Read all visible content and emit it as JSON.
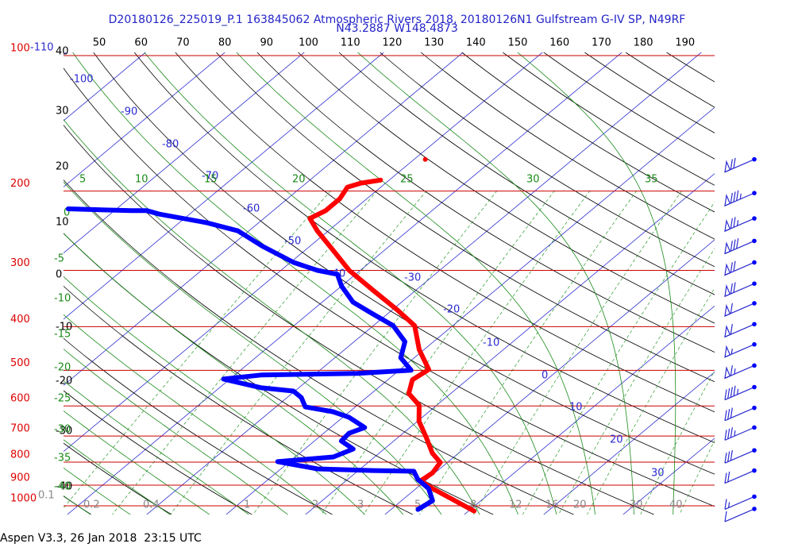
{
  "chart_data": {
    "type": "skewt",
    "title": [
      "D20180126_225019_P.1 163845062 Atmospheric Rivers 2018, 20180126N1 Gulfstream G-IV SP, N49RF",
      "N43.2887 W148.4873"
    ],
    "footer": "Aspen V3.3, 26 Jan 2018  23:15 UTC",
    "ylim": [
      100,
      1000
    ],
    "yticks": [
      100,
      200,
      300,
      400,
      500,
      600,
      700,
      800,
      900,
      1000
    ],
    "top_ticks": [
      50,
      60,
      70,
      80,
      90,
      100,
      110,
      120,
      130,
      140,
      150,
      160,
      170,
      180,
      190
    ],
    "left_labels": [
      40,
      30,
      20,
      10,
      0,
      -10,
      -20,
      -30,
      -40
    ],
    "isotherm_labels": [
      -110,
      -100,
      -90,
      -80,
      -70,
      -60,
      -50,
      -40,
      -30,
      -20,
      -10,
      0,
      10,
      20,
      30
    ],
    "theta_labels": [
      5,
      10,
      15,
      20,
      25,
      30,
      35
    ],
    "green_left_labels": [
      0,
      -5,
      -10,
      -15,
      -20,
      -25,
      -30,
      -35,
      -40
    ],
    "mixing_ratio_labels": [
      0.1,
      0.2,
      0.4,
      1,
      2,
      3,
      5,
      8,
      12,
      16,
      20,
      30,
      40
    ],
    "series": [
      {
        "color": "#ff0000",
        "pressure": [
          1027,
          966,
          916,
          880,
          845,
          801,
          764,
          704,
          649,
          598,
          563,
          525,
          498,
          450,
          398,
          367,
          332,
          300,
          271,
          245,
          230,
          221,
          208,
          196,
          192,
          189,
          null,
          170
        ],
        "values": [
          10.7,
          6.1,
          2.1,
          -0.6,
          -0.3,
          -0.9,
          -3.3,
          -6.5,
          -9.8,
          -12.2,
          -15.3,
          -16.9,
          -16.4,
          -20.6,
          -24.8,
          -29.4,
          -35.4,
          -41.4,
          -46.4,
          -51.4,
          -54.2,
          -53.4,
          -53.4,
          -54.2,
          -53.1,
          -51.1,
          null,
          -48.6
        ]
      },
      {
        "color": "#0000ff",
        "pressure": [
          1019,
          974,
          916,
          873,
          838,
          835,
          828,
          798,
          779,
          748,
          718,
          690,
          670,
          636,
          618,
          603,
          575,
          556,
          547,
          523,
          512,
          508,
          500,
          469,
          432,
          398,
          375,
          353,
          325,
          306,
          300,
          288,
          265,
          245,
          235,
          225,
          221,
          221,
          219
        ],
        "values": [
          3.4,
          3.9,
          1.6,
          -1.2,
          -2.9,
          -8.2,
          -15.4,
          -21.5,
          -15.2,
          -13.9,
          -16.6,
          -16.8,
          -15.7,
          -19.2,
          -22.1,
          -26.3,
          -28.2,
          -30.2,
          -34.7,
          -40.8,
          -36.6,
          -24.8,
          -18.5,
          -21.7,
          -23.6,
          -27.5,
          -31.8,
          -36.1,
          -40.0,
          -42.3,
          -45.4,
          -49.6,
          -56.0,
          -61.4,
          -66.6,
          -73.8,
          -75.9,
          -77.9,
          -86.1
        ]
      }
    ],
    "winds": {
      "pressure": [
        170,
        202,
        230,
        258,
        288,
        321,
        355,
        395,
        438,
        488,
        545,
        606,
        670,
        753,
        835,
        954,
        1016
      ],
      "speed": [
        70,
        85,
        75,
        80,
        70,
        70,
        60,
        60,
        55,
        65,
        45,
        30,
        35,
        30,
        20,
        15,
        10
      ]
    }
  }
}
